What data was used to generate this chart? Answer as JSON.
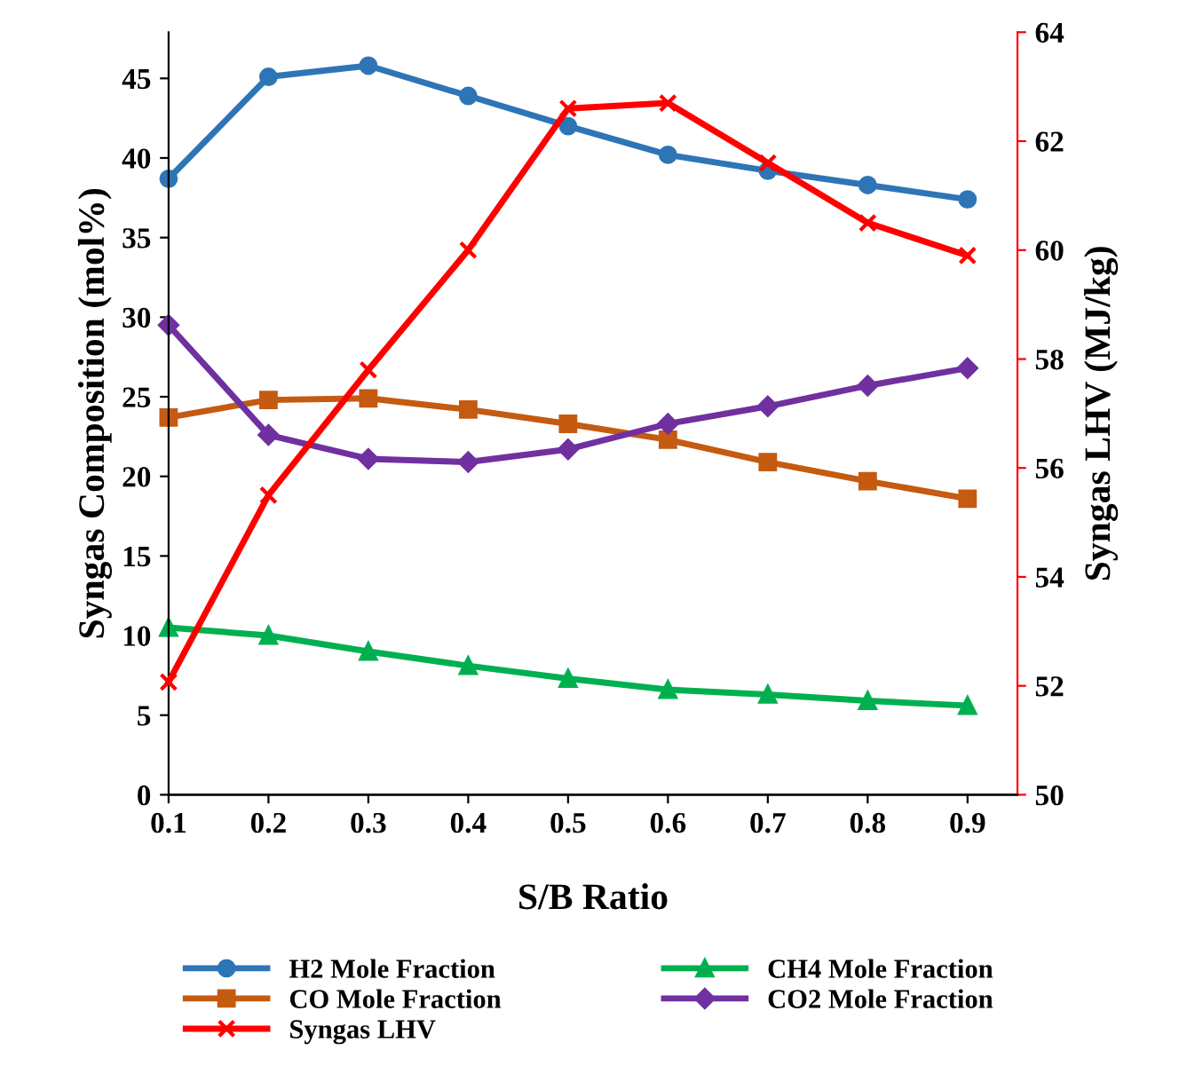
{
  "chart_data": {
    "type": "line",
    "xlabel": "S/B Ratio",
    "ylabel": "Syngas Composition (mol%)",
    "y2label": "Syngas LHV (MJ/kg)",
    "x": [
      0.1,
      0.2,
      0.3,
      0.4,
      0.5,
      0.6,
      0.7,
      0.8,
      0.9
    ],
    "xlim": [
      0.1,
      0.95
    ],
    "xticks": [
      0.1,
      0.2,
      0.3,
      0.4,
      0.5,
      0.6,
      0.7,
      0.8,
      0.9
    ],
    "ylim": [
      0,
      47.9
    ],
    "yticks": [
      0,
      5,
      10,
      15,
      20,
      25,
      30,
      35,
      40,
      45
    ],
    "y2lim": [
      50,
      64
    ],
    "y2ticks": [
      50,
      52,
      54,
      56,
      58,
      60,
      62,
      64
    ],
    "legend": "bottom",
    "grid": false,
    "series": [
      {
        "name": "H2 Mole Fraction",
        "color": "#2e75b6",
        "marker": "circle",
        "values": [
          38.7,
          45.1,
          45.8,
          43.9,
          42.0,
          40.2,
          39.2,
          38.3,
          37.4
        ]
      },
      {
        "name": "CO Mole Fraction",
        "color": "#c55a11",
        "marker": "square",
        "values": [
          23.7,
          24.8,
          24.9,
          24.2,
          23.3,
          22.3,
          20.9,
          19.7,
          18.6
        ]
      },
      {
        "name": "Syngas LHV",
        "color": "#ff0000",
        "marker": "cross",
        "axis": "y2",
        "values": [
          52.07,
          55.5,
          57.8,
          60.0,
          62.6,
          62.7,
          61.6,
          60.5,
          59.9
        ]
      },
      {
        "name": "CH4 Mole Fraction",
        "color": "#00b050",
        "marker": "triangle",
        "values": [
          10.5,
          10.0,
          9.0,
          8.1,
          7.3,
          6.6,
          6.3,
          5.9,
          5.6
        ]
      },
      {
        "name": "CO2 Mole Fraction",
        "color": "#7030a0",
        "marker": "diamond",
        "values": [
          29.5,
          22.6,
          21.1,
          20.9,
          21.7,
          23.3,
          24.4,
          25.7,
          26.8
        ]
      }
    ]
  }
}
